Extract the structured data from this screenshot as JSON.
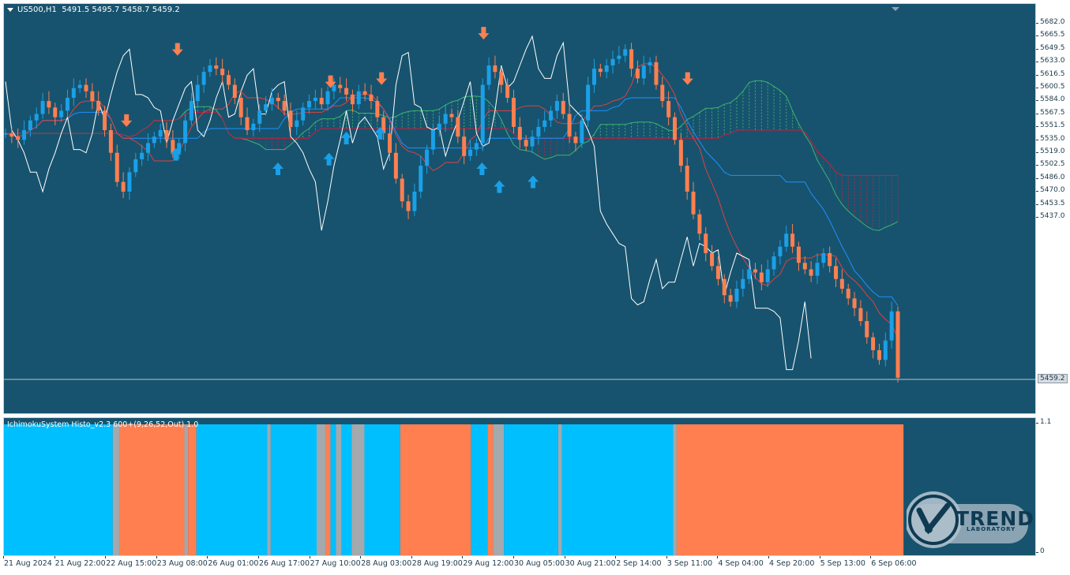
{
  "symbol_header": {
    "symbol": "US500,H1",
    "ohlc": "5491.5 5495.7 5458.7 5459.2"
  },
  "indicator_header": "IchimokuSystem Histo_v2.3 600+(9,26,52,Out) 1.0",
  "price_axis": {
    "ticks": [
      "5682.0",
      "5665.5",
      "5649.5",
      "5633.0",
      "5616.5",
      "5600.5",
      "5584.0",
      "5567.5",
      "5551.5",
      "5535.0",
      "5519.0",
      "5502.5",
      "5486.0",
      "5470.0",
      "5453.5",
      "5437.0"
    ],
    "current_price": "5459.2"
  },
  "histogram_axis": {
    "top": "1.1",
    "bottom": "0"
  },
  "time_axis": [
    "21 Aug 2024",
    "21 Aug 22:00",
    "22 Aug 15:00",
    "23 Aug 08:00",
    "26 Aug 01:00",
    "26 Aug 17:00",
    "27 Aug 10:00",
    "28 Aug 03:00",
    "28 Aug 19:00",
    "29 Aug 12:00",
    "30 Aug 05:00",
    "30 Aug 21:00",
    "2 Sep 14:00",
    "3 Sep 11:00",
    "4 Sep 04:00",
    "4 Sep 20:00",
    "5 Sep 13:00",
    "6 Sep 06:00"
  ],
  "colors": {
    "background": "#17536e",
    "bull": "#1aa0e8",
    "bear": "#ff7f50",
    "neutral": "#a3a9ad",
    "histo_bull": "#00bfff",
    "tenkan": "#e04040",
    "kijun": "#1e90ff",
    "chikou": "#ffffff",
    "kumo_bull": "#3cb371",
    "kumo_bear": "#c81e3c"
  },
  "logo": {
    "text": "TREND",
    "subtext": "LABORATORY"
  },
  "chart_data": {
    "type": "candlestick",
    "timeframe": "H1",
    "ylim": [
      5437.0,
      5690.0
    ],
    "close_path": [
      5610,
      5608,
      5606,
      5612,
      5618,
      5622,
      5630,
      5626,
      5620,
      5624,
      5632,
      5638,
      5640,
      5636,
      5630,
      5624,
      5612,
      5598,
      5580,
      5574,
      5586,
      5594,
      5598,
      5604,
      5608,
      5612,
      5606,
      5598,
      5604,
      5618,
      5630,
      5640,
      5648,
      5652,
      5650,
      5646,
      5640,
      5632,
      5620,
      5612,
      5616,
      5624,
      5628,
      5632,
      5630,
      5624,
      5614,
      5618,
      5626,
      5630,
      5632,
      5628,
      5636,
      5640,
      5638,
      5634,
      5628,
      5636,
      5634,
      5630,
      5620,
      5610,
      5598,
      5582,
      5568,
      5562,
      5574,
      5590,
      5600,
      5612,
      5616,
      5622,
      5620,
      5608,
      5596,
      5600,
      5604,
      5640,
      5652,
      5648,
      5640,
      5632,
      5614,
      5606,
      5602,
      5608,
      5614,
      5618,
      5624,
      5630,
      5622,
      5608,
      5604,
      5618,
      5640,
      5650,
      5648,
      5652,
      5656,
      5658,
      5662,
      5650,
      5644,
      5652,
      5654,
      5640,
      5630,
      5620,
      5606,
      5590,
      5574,
      5560,
      5548,
      5536,
      5528,
      5520,
      5510,
      5506,
      5514,
      5520,
      5526,
      5524,
      5518,
      5526,
      5534,
      5540,
      5548,
      5540,
      5530,
      5526,
      5522,
      5530,
      5536,
      5528,
      5520,
      5514,
      5508,
      5502,
      5494,
      5484,
      5476,
      5470,
      5482,
      5500,
      5459
    ],
    "buy_signals": [
      {
        "time": "23 Aug 08:00",
        "price": 5601
      },
      {
        "time": "26 Aug 17:00",
        "price": 5592
      },
      {
        "time": "27 Aug 10:00",
        "price": 5598
      },
      {
        "time": "27 Aug 10:00",
        "price": 5611
      },
      {
        "time": "28 Aug 03:00",
        "price": 5614
      },
      {
        "time": "29 Aug 12:00",
        "price": 5592
      },
      {
        "time": "29 Aug 12:00",
        "price": 5581
      },
      {
        "time": "30 Aug 05:00",
        "price": 5584
      }
    ],
    "sell_signals": [
      {
        "time": "22 Aug 15:00",
        "price": 5614
      },
      {
        "time": "23 Aug 08:00",
        "price": 5658
      },
      {
        "time": "27 Aug 10:00",
        "price": 5638
      },
      {
        "time": "28 Aug 03:00",
        "price": 5640
      },
      {
        "time": "29 Aug 12:00",
        "price": 5668
      },
      {
        "time": "3 Sep 11:00",
        "price": 5640
      }
    ],
    "histogram": {
      "ylim": [
        0,
        1.1
      ],
      "segments": [
        {
          "from": 0,
          "to": 0.1185,
          "state": "bull"
        },
        {
          "from": 0.1185,
          "to": 0.1255,
          "state": "neutral"
        },
        {
          "from": 0.1255,
          "to": 0.1965,
          "state": "bear"
        },
        {
          "from": 0.1965,
          "to": 0.2005,
          "state": "neutral"
        },
        {
          "from": 0.2005,
          "to": 0.2095,
          "state": "bear"
        },
        {
          "from": 0.2095,
          "to": 0.2865,
          "state": "bull"
        },
        {
          "from": 0.2865,
          "to": 0.2905,
          "state": "neutral"
        },
        {
          "from": 0.2905,
          "to": 0.3405,
          "state": "bull"
        },
        {
          "from": 0.3405,
          "to": 0.3505,
          "state": "neutral"
        },
        {
          "from": 0.3505,
          "to": 0.3555,
          "state": "bear"
        },
        {
          "from": 0.3555,
          "to": 0.3615,
          "state": "bull"
        },
        {
          "from": 0.3615,
          "to": 0.3675,
          "state": "neutral"
        },
        {
          "from": 0.3675,
          "to": 0.3785,
          "state": "bull"
        },
        {
          "from": 0.3785,
          "to": 0.3925,
          "state": "neutral"
        },
        {
          "from": 0.3925,
          "to": 0.4315,
          "state": "bull"
        },
        {
          "from": 0.4315,
          "to": 0.5085,
          "state": "bear"
        },
        {
          "from": 0.5085,
          "to": 0.5265,
          "state": "bull"
        },
        {
          "from": 0.5265,
          "to": 0.5325,
          "state": "bear"
        },
        {
          "from": 0.5325,
          "to": 0.5445,
          "state": "neutral"
        },
        {
          "from": 0.5445,
          "to": 0.6035,
          "state": "bull"
        },
        {
          "from": 0.6035,
          "to": 0.6075,
          "state": "neutral"
        },
        {
          "from": 0.6075,
          "to": 0.7285,
          "state": "bull"
        },
        {
          "from": 0.7285,
          "to": 0.7325,
          "state": "neutral"
        },
        {
          "from": 0.7325,
          "to": 0.9795,
          "state": "bear"
        }
      ]
    }
  }
}
